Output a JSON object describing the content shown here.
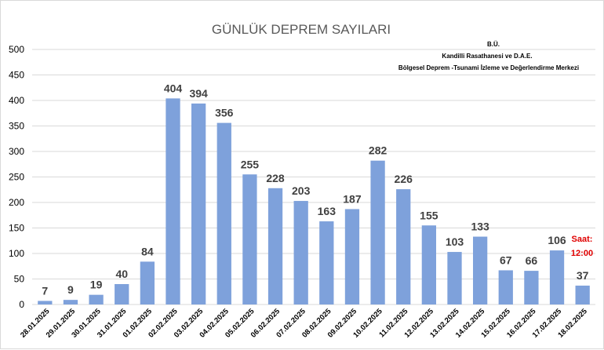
{
  "chart_data": {
    "type": "bar",
    "title": "GÜNLÜK DEPREM SAYILARI",
    "credits": [
      "B.Ü.",
      "Kandilli Rasathanesi ve D.A.E.",
      "Bölgesel Deprem -Tsunami İzleme ve Değerlendirme Merkezi"
    ],
    "categories": [
      "28.01.2025",
      "29.01.2025",
      "30.01.2025",
      "31.01.2025",
      "01.02.2025",
      "02.02.2025",
      "03.02.2025",
      "04.02.2025",
      "05.02.2025",
      "06.02.2025",
      "07.02.2025",
      "08.02.2025",
      "09.02.2025",
      "10.02.2025",
      "11.02.2025",
      "12.02.2025",
      "13.02.2025",
      "14.02.2025",
      "15.02.2025",
      "16.02.2025",
      "17.02.2025",
      "18.02.2025"
    ],
    "values": [
      7,
      9,
      19,
      40,
      84,
      404,
      394,
      356,
      255,
      228,
      203,
      163,
      187,
      282,
      226,
      155,
      103,
      133,
      67,
      66,
      106,
      37
    ],
    "yticks": [
      0,
      50,
      100,
      150,
      200,
      250,
      300,
      350,
      400,
      450,
      500
    ],
    "ylim": [
      0,
      500
    ],
    "grid": true,
    "bar_color": "#7ea1db",
    "note": [
      "Saat:",
      "12:00"
    ],
    "note_color": "#e00000"
  }
}
